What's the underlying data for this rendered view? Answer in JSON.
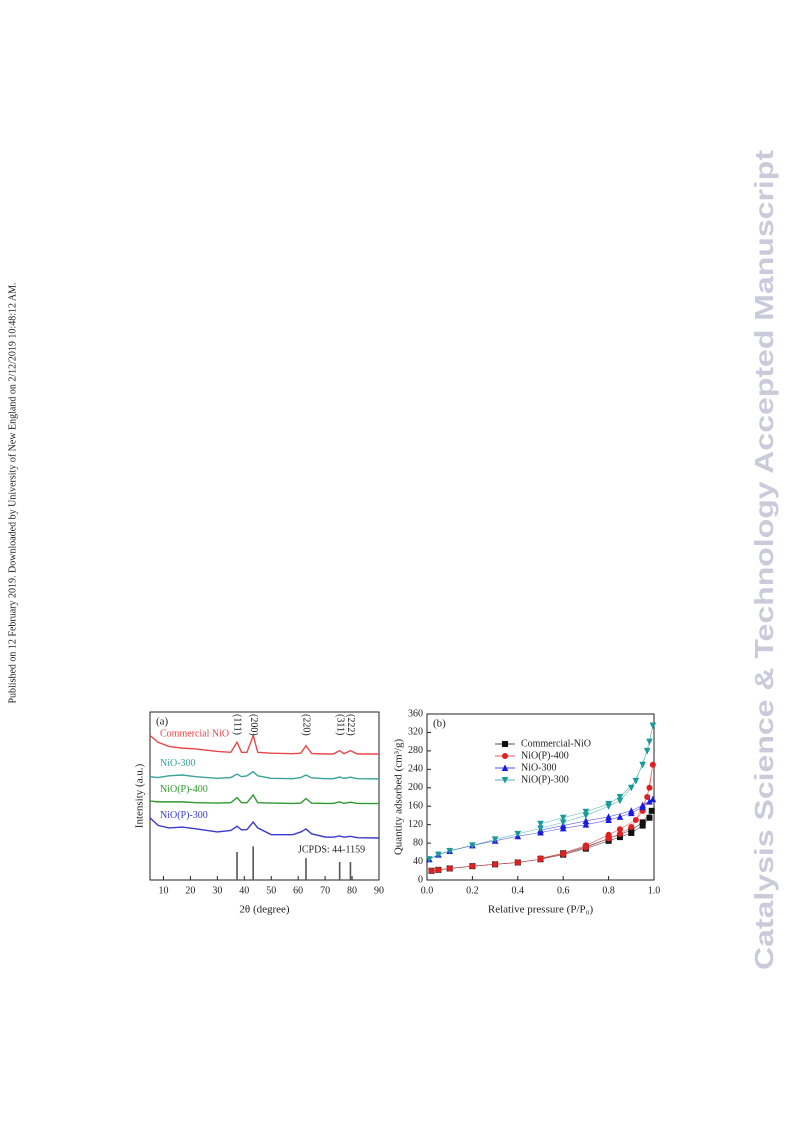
{
  "margin_note": "Published on 12 February 2019. Downloaded by University of New England on 2/12/2019 10:48:12 AM.",
  "watermark": "Catalysis Science & Technology Accepted Manuscript",
  "chart_data": [
    {
      "type": "line",
      "panel_label": "(a)",
      "x_label": "2θ (degree)",
      "y_label": "Intensity (a.u.)",
      "xlim": [
        5,
        90
      ],
      "xticks": [
        10,
        20,
        30,
        40,
        50,
        60,
        70,
        80,
        90
      ],
      "ylim": [
        0,
        100
      ],
      "grid": false,
      "x": [
        5,
        8,
        12,
        17,
        22,
        30,
        35,
        37.3,
        39,
        41,
        43.3,
        45,
        50,
        58,
        61,
        62.9,
        65,
        70,
        73,
        75.4,
        77,
        79.4,
        82,
        90
      ],
      "series": [
        {
          "name": "Commercial NiO",
          "color": "#e8474a",
          "values": [
            86,
            82,
            79.5,
            78.5,
            78,
            76.5,
            76,
            82,
            76,
            76,
            86,
            76,
            75.5,
            75.2,
            75.5,
            80,
            75.3,
            75,
            75,
            77,
            75.2,
            77,
            75,
            75
          ]
        },
        {
          "name": "NiO-300",
          "color": "#3aa39a",
          "values": [
            61.5,
            61,
            62,
            62.5,
            61.5,
            60.5,
            61,
            63,
            61.5,
            62,
            64.5,
            62,
            60.5,
            60.3,
            61,
            62.5,
            60.8,
            60.3,
            60.3,
            61.3,
            60.5,
            61.2,
            60.3,
            60.2
          ]
        },
        {
          "name": "NiO(P)-400",
          "color": "#2e9a2e",
          "values": [
            47,
            46.5,
            46.5,
            46.5,
            46,
            45.8,
            46,
            49,
            46,
            46,
            50.6,
            46,
            45.8,
            45.6,
            45.8,
            48.5,
            45.7,
            45.6,
            45.6,
            46.5,
            45.6,
            46.3,
            45.6,
            45.5
          ]
        },
        {
          "name": "NiO(P)-300",
          "color": "#3a3ad0",
          "values": [
            37,
            32.5,
            31,
            31.5,
            30.5,
            28.6,
            29.5,
            32,
            29.8,
            30,
            34.5,
            31,
            27,
            27,
            28.6,
            30.4,
            27.5,
            25.6,
            25.5,
            26.2,
            25.5,
            26,
            25.2,
            25
          ]
        }
      ],
      "reference": {
        "name": "JCPDS: 44-1159",
        "color": "#555555",
        "x": [
          37.3,
          43.3,
          62.9,
          75.4,
          79.4
        ],
        "values": [
          16.7,
          20,
          13,
          10.7,
          10.7
        ]
      },
      "peak_labels": [
        {
          "x": 37.3,
          "label": "(111)"
        },
        {
          "x": 43.3,
          "label": "(200)"
        },
        {
          "x": 62.9,
          "label": "(220)"
        },
        {
          "x": 75.4,
          "label": "(311)"
        },
        {
          "x": 79.4,
          "label": "(222)"
        }
      ]
    },
    {
      "type": "scatter",
      "panel_label": "(b)",
      "x_label": "Relative pressure (P/P₀)",
      "y_label": "Quantity adsorbed (cm³/g)",
      "xlim": [
        0,
        1
      ],
      "xticks": [
        {
          "value": 0,
          "label": "0.0"
        },
        {
          "value": 0.2,
          "label": "0.2"
        },
        {
          "value": 0.4,
          "label": "0.4"
        },
        {
          "value": 0.6,
          "label": "0.6"
        },
        {
          "value": 0.8,
          "label": "0.8"
        },
        {
          "value": 1,
          "label": "1.0"
        }
      ],
      "ylim": [
        0,
        360
      ],
      "yticks": [
        0,
        40,
        80,
        120,
        160,
        200,
        240,
        280,
        320,
        360
      ],
      "grid": false,
      "legend": "upper left",
      "series": [
        {
          "name": "Commercial-NiO",
          "color": "#111111",
          "marker": "square",
          "x": [
            0.02,
            0.05,
            0.1,
            0.2,
            0.3,
            0.4,
            0.5,
            0.6,
            0.7,
            0.8,
            0.85,
            0.9,
            0.95,
            0.98,
            0.99,
            0.95,
            0.9,
            0.8,
            0.7,
            0.6,
            0.5
          ],
          "values": [
            20,
            22,
            25,
            30,
            34,
            38,
            45,
            55,
            68,
            85,
            93,
            102,
            118,
            135,
            150,
            125,
            108,
            90,
            72,
            58,
            46
          ]
        },
        {
          "name": "NiO(P)-400",
          "color": "#e02020",
          "marker": "circle",
          "x": [
            0.02,
            0.05,
            0.1,
            0.2,
            0.3,
            0.4,
            0.5,
            0.6,
            0.7,
            0.8,
            0.85,
            0.9,
            0.95,
            0.98,
            0.995,
            0.97,
            0.92,
            0.85,
            0.8,
            0.7,
            0.6,
            0.5
          ],
          "values": [
            20,
            22,
            25,
            30,
            34,
            38,
            45,
            56,
            70,
            90,
            100,
            115,
            150,
            200,
            250,
            180,
            130,
            110,
            98,
            75,
            58,
            47
          ]
        },
        {
          "name": "NiO-300",
          "color": "#1a1ae0",
          "marker": "triangle",
          "x": [
            0.01,
            0.05,
            0.1,
            0.2,
            0.3,
            0.4,
            0.5,
            0.6,
            0.7,
            0.8,
            0.85,
            0.9,
            0.95,
            0.98,
            0.995,
            0.95,
            0.9,
            0.8,
            0.7,
            0.6,
            0.5
          ],
          "values": [
            45,
            55,
            63,
            75,
            85,
            95,
            103,
            112,
            120,
            130,
            137,
            145,
            158,
            170,
            175,
            162,
            150,
            137,
            128,
            118,
            108
          ]
        },
        {
          "name": "NiO(P)-300",
          "color": "#1a9a9a",
          "marker": "triangle-down",
          "x": [
            0.01,
            0.05,
            0.1,
            0.2,
            0.3,
            0.4,
            0.5,
            0.6,
            0.7,
            0.8,
            0.85,
            0.9,
            0.95,
            0.98,
            0.995,
            0.97,
            0.92,
            0.85,
            0.8,
            0.7,
            0.6,
            0.5
          ],
          "values": [
            45,
            55,
            63,
            75,
            88,
            100,
            112,
            125,
            140,
            160,
            172,
            200,
            250,
            300,
            335,
            280,
            215,
            180,
            165,
            148,
            135,
            122
          ]
        }
      ]
    }
  ]
}
